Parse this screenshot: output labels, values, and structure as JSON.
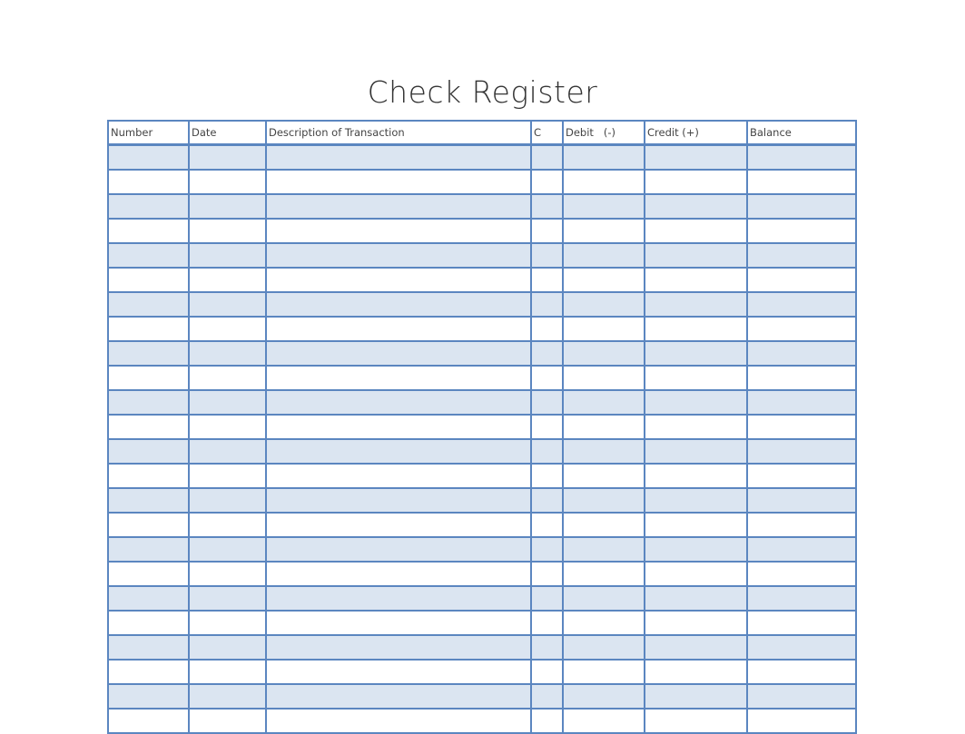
{
  "title": "Check Register",
  "columns": [
    "Number",
    "Date",
    "Description of Transaction",
    "C",
    "Debit   (-)",
    "Credit (+)",
    "Balance"
  ],
  "row_count": 24,
  "colors": {
    "border": "#5b86c0",
    "shaded_row": "#dbe5f1"
  }
}
